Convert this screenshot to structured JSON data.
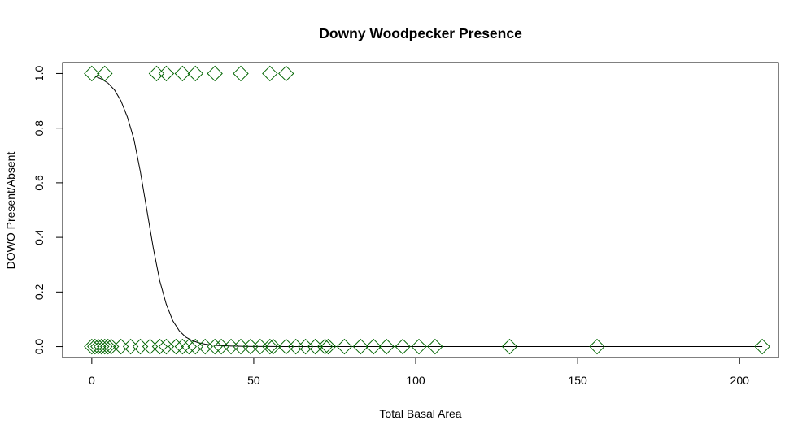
{
  "chart_data": {
    "type": "scatter",
    "title": "Downy Woodpecker Presence",
    "xlabel": "Total Basal Area",
    "ylabel": "DOWO Present/Absent",
    "xlim": [
      -9,
      212
    ],
    "ylim": [
      -0.04,
      1.04
    ],
    "x_ticks": [
      0,
      50,
      100,
      150,
      200
    ],
    "y_ticks": [
      0.0,
      0.2,
      0.4,
      0.6,
      0.8,
      1.0
    ],
    "x_tick_labels": [
      "0",
      "50",
      "100",
      "150",
      "200"
    ],
    "y_tick_labels": [
      "0.0",
      "0.2",
      "0.4",
      "0.6",
      "0.8",
      "1.0"
    ],
    "grid": false,
    "legend": "none",
    "marker": "diamond",
    "marker_color": "#006400",
    "line_color": "#000000",
    "points": {
      "x": [
        0,
        4,
        20,
        23,
        28,
        32,
        38,
        46,
        55,
        60,
        0,
        1,
        2,
        3,
        4,
        5,
        6,
        9,
        12,
        15,
        18,
        21,
        23,
        26,
        28,
        30,
        32,
        35,
        38,
        40,
        43,
        46,
        49,
        52,
        55,
        56,
        60,
        63,
        66,
        69,
        72,
        73,
        78,
        83,
        87,
        91,
        96,
        101,
        106,
        129,
        156,
        207
      ],
      "y": [
        1,
        1,
        1,
        1,
        1,
        1,
        1,
        1,
        1,
        1,
        0,
        0,
        0,
        0,
        0,
        0,
        0,
        0,
        0,
        0,
        0,
        0,
        0,
        0,
        0,
        0,
        0,
        0,
        0,
        0,
        0,
        0,
        0,
        0,
        0,
        0,
        0,
        0,
        0,
        0,
        0,
        0,
        0,
        0,
        0,
        0,
        0,
        0,
        0,
        0,
        0,
        0
      ]
    },
    "fitted_curve": {
      "x": [
        1,
        3,
        5,
        7,
        9,
        11,
        13,
        15,
        17,
        19,
        21,
        23,
        25,
        27,
        29,
        31,
        33,
        35,
        37,
        39,
        41,
        43,
        45,
        47,
        50,
        55,
        60,
        70,
        80,
        100,
        150,
        207
      ],
      "y": [
        0.99,
        0.98,
        0.965,
        0.94,
        0.9,
        0.84,
        0.76,
        0.64,
        0.5,
        0.36,
        0.24,
        0.155,
        0.095,
        0.058,
        0.035,
        0.022,
        0.014,
        0.009,
        0.006,
        0.004,
        0.003,
        0.002,
        0.0015,
        0.001,
        0.0007,
        0.0004,
        0.0002,
        0.0001,
        0.0,
        0.0,
        0.0,
        0.0
      ]
    }
  }
}
